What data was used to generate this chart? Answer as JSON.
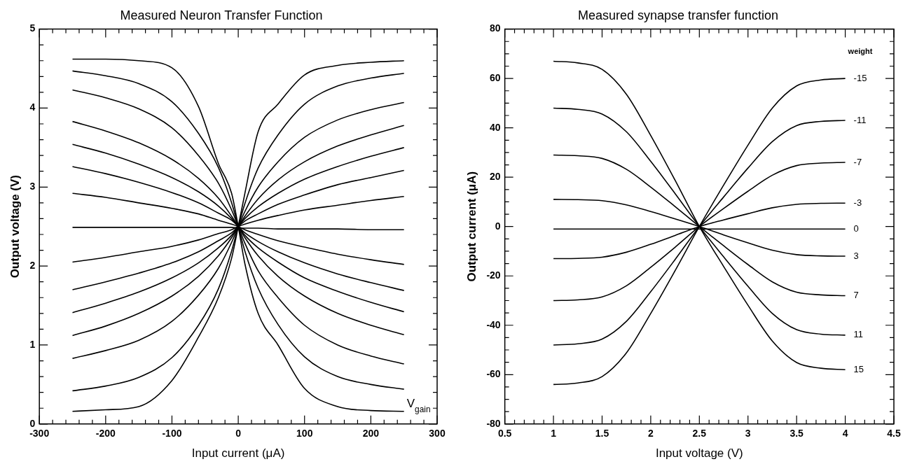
{
  "chart_data": [
    {
      "type": "line",
      "title": "Measured Neuron Transfer Function",
      "xlabel": "Input current (μA)",
      "ylabel": "Output voltage (V)",
      "annotations": [
        "V$_{gain}$"
      ],
      "marker": "none",
      "xlim": [
        -300,
        300
      ],
      "ylim": [
        0,
        5
      ],
      "xticks": [
        -300,
        {
          "value": -280,
          "label": null
        },
        {
          "value": -260,
          "label": null
        },
        {
          "value": -240,
          "label": null
        },
        {
          "value": -220,
          "label": null
        },
        -200,
        {
          "value": -180,
          "label": null
        },
        {
          "value": -160,
          "label": null
        },
        {
          "value": -140,
          "label": null
        },
        {
          "value": -120,
          "label": null
        },
        -100,
        {
          "value": -80,
          "label": null
        },
        {
          "value": -60,
          "label": null
        },
        {
          "value": -40,
          "label": null
        },
        {
          "value": -20,
          "label": null
        },
        0,
        {
          "value": 20,
          "label": null
        },
        {
          "value": 40,
          "label": null
        },
        {
          "value": 60,
          "label": null
        },
        {
          "value": 80,
          "label": null
        },
        100,
        {
          "value": 120,
          "label": null
        },
        {
          "value": 140,
          "label": null
        },
        {
          "value": 160,
          "label": null
        },
        {
          "value": 180,
          "label": null
        },
        200,
        {
          "value": 220,
          "label": null
        },
        {
          "value": 240,
          "label": null
        },
        {
          "value": 260,
          "label": null
        },
        {
          "value": 280,
          "label": null
        },
        300
      ],
      "yticks": [
        0,
        {
          "value": 0.2,
          "label": null
        },
        {
          "value": 0.4,
          "label": null
        },
        {
          "value": 0.6,
          "label": null
        },
        {
          "value": 0.8,
          "label": null
        },
        1,
        {
          "value": 1.2,
          "label": null
        },
        {
          "value": 1.4,
          "label": null
        },
        {
          "value": 1.6,
          "label": null
        },
        {
          "value": 1.8,
          "label": null
        },
        2,
        {
          "value": 2.2,
          "label": null
        },
        {
          "value": 2.4,
          "label": null
        },
        {
          "value": 2.6,
          "label": null
        },
        {
          "value": 2.8,
          "label": null
        },
        3,
        {
          "value": 3.2,
          "label": null
        },
        {
          "value": 3.4,
          "label": null
        },
        {
          "value": 3.6,
          "label": null
        },
        {
          "value": 3.8,
          "label": null
        },
        4,
        {
          "value": 4.2,
          "label": null
        },
        {
          "value": 4.4,
          "label": null
        },
        {
          "value": 4.6,
          "label": null
        },
        {
          "value": 4.8,
          "label": null
        },
        5
      ],
      "x": [
        -250,
        -200,
        -150,
        -100,
        -60,
        -30,
        -10,
        0,
        10,
        30,
        60,
        100,
        150,
        200,
        250
      ],
      "series": [
        {
          "color": "#000000",
          "values": [
            4.62,
            4.62,
            4.6,
            4.51,
            4.02,
            3.3,
            2.92,
            2.5,
            2.03,
            1.4,
            1.0,
            0.45,
            0.22,
            0.17,
            0.16
          ]
        },
        {
          "color": "#000000",
          "values": [
            4.47,
            4.41,
            4.31,
            4.08,
            3.68,
            3.25,
            2.8,
            2.5,
            2.19,
            1.72,
            1.26,
            0.85,
            0.6,
            0.5,
            0.44
          ]
        },
        {
          "color": "#000000",
          "values": [
            4.23,
            4.13,
            3.99,
            3.75,
            3.4,
            3.05,
            2.71,
            2.5,
            2.29,
            1.94,
            1.6,
            1.25,
            1.0,
            0.86,
            0.76
          ]
        },
        {
          "color": "#000000",
          "values": [
            3.83,
            3.71,
            3.56,
            3.35,
            3.11,
            2.86,
            2.63,
            2.5,
            2.36,
            2.13,
            1.87,
            1.62,
            1.4,
            1.25,
            1.13
          ]
        },
        {
          "color": "#000000",
          "values": [
            3.54,
            3.43,
            3.29,
            3.12,
            2.94,
            2.76,
            2.6,
            2.5,
            2.39,
            2.23,
            2.05,
            1.85,
            1.68,
            1.54,
            1.42
          ]
        },
        {
          "color": "#000000",
          "values": [
            3.26,
            3.17,
            3.06,
            2.93,
            2.8,
            2.67,
            2.58,
            2.5,
            2.42,
            2.31,
            2.18,
            2.04,
            1.9,
            1.79,
            1.69
          ]
        },
        {
          "color": "#000000",
          "values": [
            2.92,
            2.87,
            2.8,
            2.73,
            2.66,
            2.58,
            2.53,
            2.5,
            2.46,
            2.4,
            2.32,
            2.24,
            2.15,
            2.08,
            2.02
          ]
        },
        {
          "color": "#000000",
          "values": [
            2.49,
            2.49,
            2.49,
            2.49,
            2.49,
            2.49,
            2.49,
            2.48,
            2.48,
            2.48,
            2.47,
            2.47,
            2.47,
            2.46,
            2.46
          ]
        },
        {
          "color": "#000000",
          "values": [
            2.05,
            2.11,
            2.18,
            2.25,
            2.33,
            2.41,
            2.46,
            2.5,
            2.53,
            2.58,
            2.64,
            2.71,
            2.77,
            2.83,
            2.88
          ]
        },
        {
          "color": "#000000",
          "values": [
            1.7,
            1.8,
            1.91,
            2.04,
            2.18,
            2.32,
            2.42,
            2.5,
            2.57,
            2.66,
            2.78,
            2.9,
            3.03,
            3.12,
            3.21
          ]
        },
        {
          "color": "#000000",
          "values": [
            1.41,
            1.53,
            1.67,
            1.85,
            2.04,
            2.23,
            2.39,
            2.5,
            2.6,
            2.75,
            2.92,
            3.1,
            3.26,
            3.39,
            3.5
          ]
        },
        {
          "color": "#000000",
          "values": [
            1.12,
            1.24,
            1.4,
            1.62,
            1.87,
            2.13,
            2.36,
            2.5,
            2.63,
            2.85,
            3.09,
            3.32,
            3.52,
            3.66,
            3.78
          ]
        },
        {
          "color": "#000000",
          "values": [
            0.83,
            0.93,
            1.06,
            1.3,
            1.63,
            1.97,
            2.3,
            2.5,
            2.69,
            3.0,
            3.32,
            3.63,
            3.85,
            3.98,
            4.07
          ]
        },
        {
          "color": "#000000",
          "values": [
            0.42,
            0.48,
            0.59,
            0.84,
            1.25,
            1.71,
            2.19,
            2.5,
            2.79,
            3.24,
            3.66,
            4.05,
            4.28,
            4.38,
            4.44
          ]
        },
        {
          "color": "#000000",
          "values": [
            0.16,
            0.18,
            0.22,
            0.55,
            1.1,
            1.6,
            2.1,
            2.5,
            2.92,
            3.7,
            4.05,
            4.42,
            4.54,
            4.58,
            4.6
          ]
        }
      ]
    },
    {
      "type": "line",
      "title": "Measured synapse transfer function",
      "xlabel": "Input voltage (V)",
      "ylabel": "Output current (μA)",
      "legend_title": "weight",
      "marker": "none",
      "legend": "right",
      "xlim": [
        0.5,
        4.5
      ],
      "ylim": [
        -80,
        80
      ],
      "xticks": [
        0.5,
        {
          "value": 0.6,
          "label": null
        },
        {
          "value": 0.7,
          "label": null
        },
        {
          "value": 0.8,
          "label": null
        },
        {
          "value": 0.9,
          "label": null
        },
        1,
        {
          "value": 1.1,
          "label": null
        },
        {
          "value": 1.2,
          "label": null
        },
        {
          "value": 1.3,
          "label": null
        },
        {
          "value": 1.4,
          "label": null
        },
        1.5,
        {
          "value": 1.6,
          "label": null
        },
        {
          "value": 1.7,
          "label": null
        },
        {
          "value": 1.8,
          "label": null
        },
        {
          "value": 1.9,
          "label": null
        },
        2,
        {
          "value": 2.1,
          "label": null
        },
        {
          "value": 2.2,
          "label": null
        },
        {
          "value": 2.3,
          "label": null
        },
        {
          "value": 2.4,
          "label": null
        },
        2.5,
        {
          "value": 2.6,
          "label": null
        },
        {
          "value": 2.7,
          "label": null
        },
        {
          "value": 2.8,
          "label": null
        },
        {
          "value": 2.9,
          "label": null
        },
        3,
        {
          "value": 3.1,
          "label": null
        },
        {
          "value": 3.2,
          "label": null
        },
        {
          "value": 3.3,
          "label": null
        },
        {
          "value": 3.4,
          "label": null
        },
        3.5,
        {
          "value": 3.6,
          "label": null
        },
        {
          "value": 3.7,
          "label": null
        },
        {
          "value": 3.8,
          "label": null
        },
        {
          "value": 3.9,
          "label": null
        },
        4,
        {
          "value": 4.1,
          "label": null
        },
        {
          "value": 4.2,
          "label": null
        },
        {
          "value": 4.3,
          "label": null
        },
        {
          "value": 4.4,
          "label": null
        },
        4.5
      ],
      "yticks": [
        -80,
        {
          "value": -75,
          "label": null
        },
        {
          "value": -70,
          "label": null
        },
        {
          "value": -65,
          "label": null
        },
        -60,
        {
          "value": -55,
          "label": null
        },
        {
          "value": -50,
          "label": null
        },
        {
          "value": -45,
          "label": null
        },
        -40,
        {
          "value": -35,
          "label": null
        },
        {
          "value": -30,
          "label": null
        },
        {
          "value": -25,
          "label": null
        },
        -20,
        {
          "value": -15,
          "label": null
        },
        {
          "value": -10,
          "label": null
        },
        {
          "value": -5,
          "label": null
        },
        0,
        {
          "value": 5,
          "label": null
        },
        {
          "value": 10,
          "label": null
        },
        {
          "value": 15,
          "label": null
        },
        20,
        {
          "value": 25,
          "label": null
        },
        {
          "value": 30,
          "label": null
        },
        {
          "value": 35,
          "label": null
        },
        40,
        {
          "value": 45,
          "label": null
        },
        {
          "value": 50,
          "label": null
        },
        {
          "value": 55,
          "label": null
        },
        60,
        {
          "value": 65,
          "label": null
        },
        {
          "value": 70,
          "label": null
        },
        {
          "value": 75,
          "label": null
        },
        80
      ],
      "x": [
        1,
        1.25,
        1.5,
        1.75,
        2,
        2.25,
        2.5,
        2.75,
        3,
        3.25,
        3.5,
        3.75,
        4
      ],
      "series": [
        {
          "name": "-15",
          "color": "#000000",
          "values": [
            -64,
            -63.4,
            -60.8,
            -51.2,
            -35.2,
            -17.9,
            0,
            16.8,
            33,
            48,
            57,
            59.4,
            60
          ]
        },
        {
          "name": "-11",
          "color": "#000000",
          "values": [
            -48,
            -47.5,
            -45.6,
            -38.4,
            -26.4,
            -13.4,
            0,
            12,
            23.7,
            34.4,
            40.9,
            42.6,
            43
          ]
        },
        {
          "name": "-7",
          "color": "#000000",
          "values": [
            -30,
            -29.7,
            -28.5,
            -24,
            -16.5,
            -8.4,
            0,
            7.3,
            14.3,
            20.8,
            24.7,
            25.7,
            26
          ]
        },
        {
          "name": "-3",
          "color": "#000000",
          "values": [
            -13,
            -12.9,
            -12.4,
            -10.4,
            -7.2,
            -3.6,
            0,
            2.7,
            5.2,
            7.6,
            9,
            9.4,
            9.5
          ]
        },
        {
          "name": "0",
          "color": "#000000",
          "values": [
            -1,
            -1,
            -1,
            -1,
            -1,
            -1,
            -1,
            -1,
            -1,
            -1,
            -1,
            -1,
            -1
          ]
        },
        {
          "name": "3",
          "color": "#000000",
          "values": [
            11,
            10.9,
            10.5,
            8.8,
            6.1,
            3.1,
            0,
            -3.4,
            -6.6,
            -9.6,
            -11.4,
            -11.9,
            -12
          ]
        },
        {
          "name": "7",
          "color": "#000000",
          "values": [
            29,
            28.7,
            27.6,
            23.2,
            16,
            8.1,
            0,
            -7.8,
            -15.4,
            -22.4,
            -26.6,
            -27.7,
            -28
          ]
        },
        {
          "name": "11",
          "color": "#000000",
          "values": [
            48,
            47.5,
            45.6,
            38.4,
            26.4,
            13.4,
            0,
            -12.3,
            -24.2,
            -35.2,
            -41.8,
            -43.6,
            -44
          ]
        },
        {
          "name": "15",
          "color": "#000000",
          "values": [
            67,
            66.3,
            63.7,
            53.6,
            36.9,
            18.8,
            0,
            -16.2,
            -31.9,
            -46.4,
            -55.1,
            -57.4,
            -58
          ]
        }
      ]
    }
  ]
}
